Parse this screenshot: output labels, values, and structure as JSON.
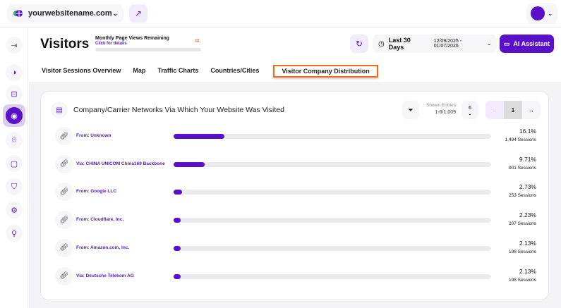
{
  "header": {
    "site": "yourwebsitename.com",
    "icons": [
      "globe-icon",
      "chevron-down-icon",
      "external-link-icon",
      "avatar"
    ]
  },
  "page": {
    "title": "Visitors",
    "quota_label": "Monthly Page Views Remaining",
    "quota_link": "Click for details",
    "quota_value": "∞",
    "date_preset": "Last 30 Days",
    "date_range": "12/09/2025 - 01/07/2026",
    "ai_label": "AI Assistant"
  },
  "tabs": [
    {
      "label": "Visitor Sessions Overview"
    },
    {
      "label": "Map"
    },
    {
      "label": "Traffic Charts"
    },
    {
      "label": "Countries/Cities"
    },
    {
      "label": "Visitor Company Distribution",
      "selected": true
    }
  ],
  "card": {
    "title": "Company/Carrier Networks Via Which Your Website Was Visited",
    "shown_label": "Shown Entries",
    "shown_value": "1-6/1,009",
    "per_page": "6",
    "page": "1",
    "rows": [
      {
        "name": "From: Unknown",
        "percent": 16.1,
        "percent_label": "16.1%",
        "sessions": "1,494 Sessions"
      },
      {
        "name": "Via: CHINA UNICOM China169 Backbone",
        "percent": 9.71,
        "percent_label": "9.71%",
        "sessions": "901 Sessions"
      },
      {
        "name": "From: Google LLC",
        "percent": 2.73,
        "percent_label": "2.73%",
        "sessions": "253 Sessions"
      },
      {
        "name": "From: Cloudflare, Inc.",
        "percent": 2.23,
        "percent_label": "2.23%",
        "sessions": "207 Sessions"
      },
      {
        "name": "From: Amazon.com, Inc.",
        "percent": 2.13,
        "percent_label": "2.13%",
        "sessions": "198 Sessions"
      },
      {
        "name": "Via: Deutsche Telekom AG",
        "percent": 2.13,
        "percent_label": "2.13%",
        "sessions": "198 Sessions"
      }
    ]
  },
  "colors": {
    "accent": "#5a0fc8",
    "highlight": "#f26a1b"
  }
}
